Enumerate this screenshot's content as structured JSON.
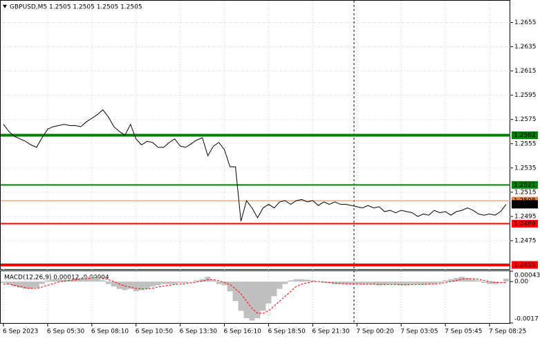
{
  "chart_data": [
    {
      "type": "line",
      "title": "GBPUSD,M5  1.2505 1.2505 1.2505 1.2505",
      "color": "#000000",
      "values": [
        1.2571,
        1.2565,
        1.2561,
        1.2559,
        1.2557,
        1.2554,
        1.2552,
        1.256,
        1.2567,
        1.2569,
        1.257,
        1.2571,
        1.257,
        1.257,
        1.2569,
        1.2573,
        1.2576,
        1.2579,
        1.2583,
        1.2577,
        1.2569,
        1.2565,
        1.2562,
        1.2571,
        1.2559,
        1.2554,
        1.2557,
        1.2556,
        1.2552,
        1.2552,
        1.2556,
        1.2559,
        1.2553,
        1.2552,
        1.2555,
        1.2558,
        1.256,
        1.2545,
        1.2553,
        1.2556,
        1.255,
        1.2536,
        1.2536,
        1.2491,
        1.2508,
        1.2502,
        1.2494,
        1.2502,
        1.2505,
        1.2502,
        1.2507,
        1.2508,
        1.2505,
        1.2508,
        1.2509,
        1.2507,
        1.2508,
        1.2504,
        1.2507,
        1.2505,
        1.2507,
        1.2505,
        1.2505,
        1.2504,
        1.2503,
        1.2502,
        1.2504,
        1.2502,
        1.2503,
        1.2499,
        1.25,
        1.2498,
        1.25,
        1.2499,
        1.2498,
        1.2495,
        1.2497,
        1.2496,
        1.25,
        1.2498,
        1.2499,
        1.2496,
        1.2499,
        1.25,
        1.2502,
        1.25,
        1.2497,
        1.2496,
        1.2497,
        1.2496,
        1.2499,
        1.2505
      ],
      "xlim": [
        -0.5,
        91.75
      ],
      "xticks": [
        {
          "value": 0,
          "label": "6 Sep 2023"
        },
        {
          "value": 8,
          "label": "6 Sep 05:30"
        },
        {
          "value": 16,
          "label": "6 Sep 08:10"
        },
        {
          "value": 24,
          "label": "6 Sep 10:50"
        },
        {
          "value": 32,
          "label": "6 Sep 13:30"
        },
        {
          "value": 40,
          "label": "6 Sep 16:10"
        },
        {
          "value": 48,
          "label": "6 Sep 18:50"
        },
        {
          "value": 56,
          "label": "6 Sep 21:30"
        },
        {
          "value": 64,
          "label": "7 Sep 00:20"
        },
        {
          "value": 72,
          "label": "7 Sep 03:05"
        },
        {
          "value": 80,
          "label": "7 Sep 05:45"
        },
        {
          "value": 88,
          "label": "7 Sep 08:25"
        }
      ],
      "ylim": [
        1.2451,
        1.2673
      ],
      "yticks": [
        1.2655,
        1.2635,
        1.2615,
        1.2595,
        1.2575,
        1.2555,
        1.2535,
        1.2515,
        1.2495,
        1.2475
      ],
      "grid": true,
      "levels": [
        {
          "value": 1.2562,
          "color": "#008000",
          "width": 4
        },
        {
          "value": 1.2521,
          "color": "#008000",
          "width": 2
        },
        {
          "value": 1.2508,
          "color": "#f08040",
          "width": 1
        },
        {
          "value": 1.2489,
          "color": "#ff0000",
          "width": 2
        },
        {
          "value": 1.2455,
          "color": "#ff0000",
          "width": 4
        }
      ],
      "last": 1.2505
    },
    {
      "type": "macd",
      "title": "MACD(12,26,9) 0.00012 -0.00004",
      "histogram": [
        -5e-05,
        -0.0001,
        -0.0002,
        -0.00025,
        -0.0003,
        -0.0003,
        -0.00025,
        -0.0001,
        5e-05,
        0.0001,
        0.0001,
        8e-05,
        8e-05,
        0.0001,
        0.00015,
        0.0002,
        0.00025,
        0.0002,
        5e-05,
        -0.0001,
        -0.0002,
        -0.0003,
        -0.00035,
        -0.0003,
        -0.0004,
        -0.00035,
        -0.0003,
        -0.0002,
        -0.00015,
        -0.0001,
        -0.0001,
        -0.0001,
        -5e-05,
        -5e-05,
        0,
        5e-05,
        0.0001,
        0.0002,
        5e-05,
        -0.0001,
        -0.00015,
        -0.0004,
        -0.0008,
        -0.0012,
        -0.0015,
        -0.0016,
        -0.0015,
        -0.0012,
        -0.0009,
        -0.0006,
        -0.0003,
        -0.0001,
        5e-05,
        0.0001,
        0.0001,
        8e-05,
        5e-05,
        0,
        -5e-05,
        -5e-05,
        -0.0001,
        -0.0001,
        -0.0001,
        -0.0001,
        -0.0001,
        -0.00012,
        -0.0001,
        -0.00012,
        -0.00015,
        -0.00012,
        -0.0001,
        -0.00012,
        -0.00015,
        -0.00015,
        -0.0001,
        -0.0001,
        -0.00012,
        -0.0001,
        -8e-05,
        -5e-05,
        5e-05,
        0.0001,
        0.00015,
        0.0002,
        0.00015,
        0.0001,
        5e-05,
        -5e-05,
        -0.0001,
        -0.0001,
        0,
        0.00012
      ],
      "histogram_color": "#c0c0c0",
      "signal": [
        -0.0001,
        -0.0001,
        -0.00015,
        -0.0002,
        -0.00025,
        -0.00028,
        -0.00028,
        -0.00022,
        -0.00015,
        -8e-05,
        -2e-05,
        2e-05,
        5e-05,
        7e-05,
        0.0001,
        0.00012,
        0.00015,
        0.00017,
        0.00014,
        8e-05,
        0,
        -0.0001,
        -0.00018,
        -0.00023,
        -0.00028,
        -0.0003,
        -0.0003,
        -0.00027,
        -0.00022,
        -0.00018,
        -0.00015,
        -0.00012,
        -0.0001,
        -8e-05,
        -5e-05,
        -2e-05,
        2e-05,
        8e-05,
        8e-05,
        3e-05,
        -3e-05,
        -0.00012,
        -0.0003,
        -0.0005,
        -0.0008,
        -0.0011,
        -0.0013,
        -0.0013,
        -0.0012,
        -0.001,
        -0.0008,
        -0.0006,
        -0.0004,
        -0.0002,
        -0.0001,
        -5e-05,
        0,
        0,
        -2e-05,
        -4e-05,
        -6e-05,
        -8e-05,
        -9e-05,
        -0.0001,
        -0.0001,
        -0.00011,
        -0.00011,
        -0.00011,
        -0.00012,
        -0.00012,
        -0.00012,
        -0.00012,
        -0.00013,
        -0.00013,
        -0.00012,
        -0.00012,
        -0.00012,
        -0.00011,
        -0.0001,
        -8e-05,
        -4e-05,
        0,
        5e-05,
        0.0001,
        0.00012,
        0.00012,
        0.0001,
        5e-05,
        0,
        -4e-05,
        -4e-05,
        -4e-05
      ],
      "signal_color": "#ff0000",
      "ylim": [
        -0.0017,
        0.00043
      ],
      "yticks": [
        0.00043,
        {
          "value": 0,
          "label": "0.00"
        },
        -0.0017
      ]
    }
  ]
}
